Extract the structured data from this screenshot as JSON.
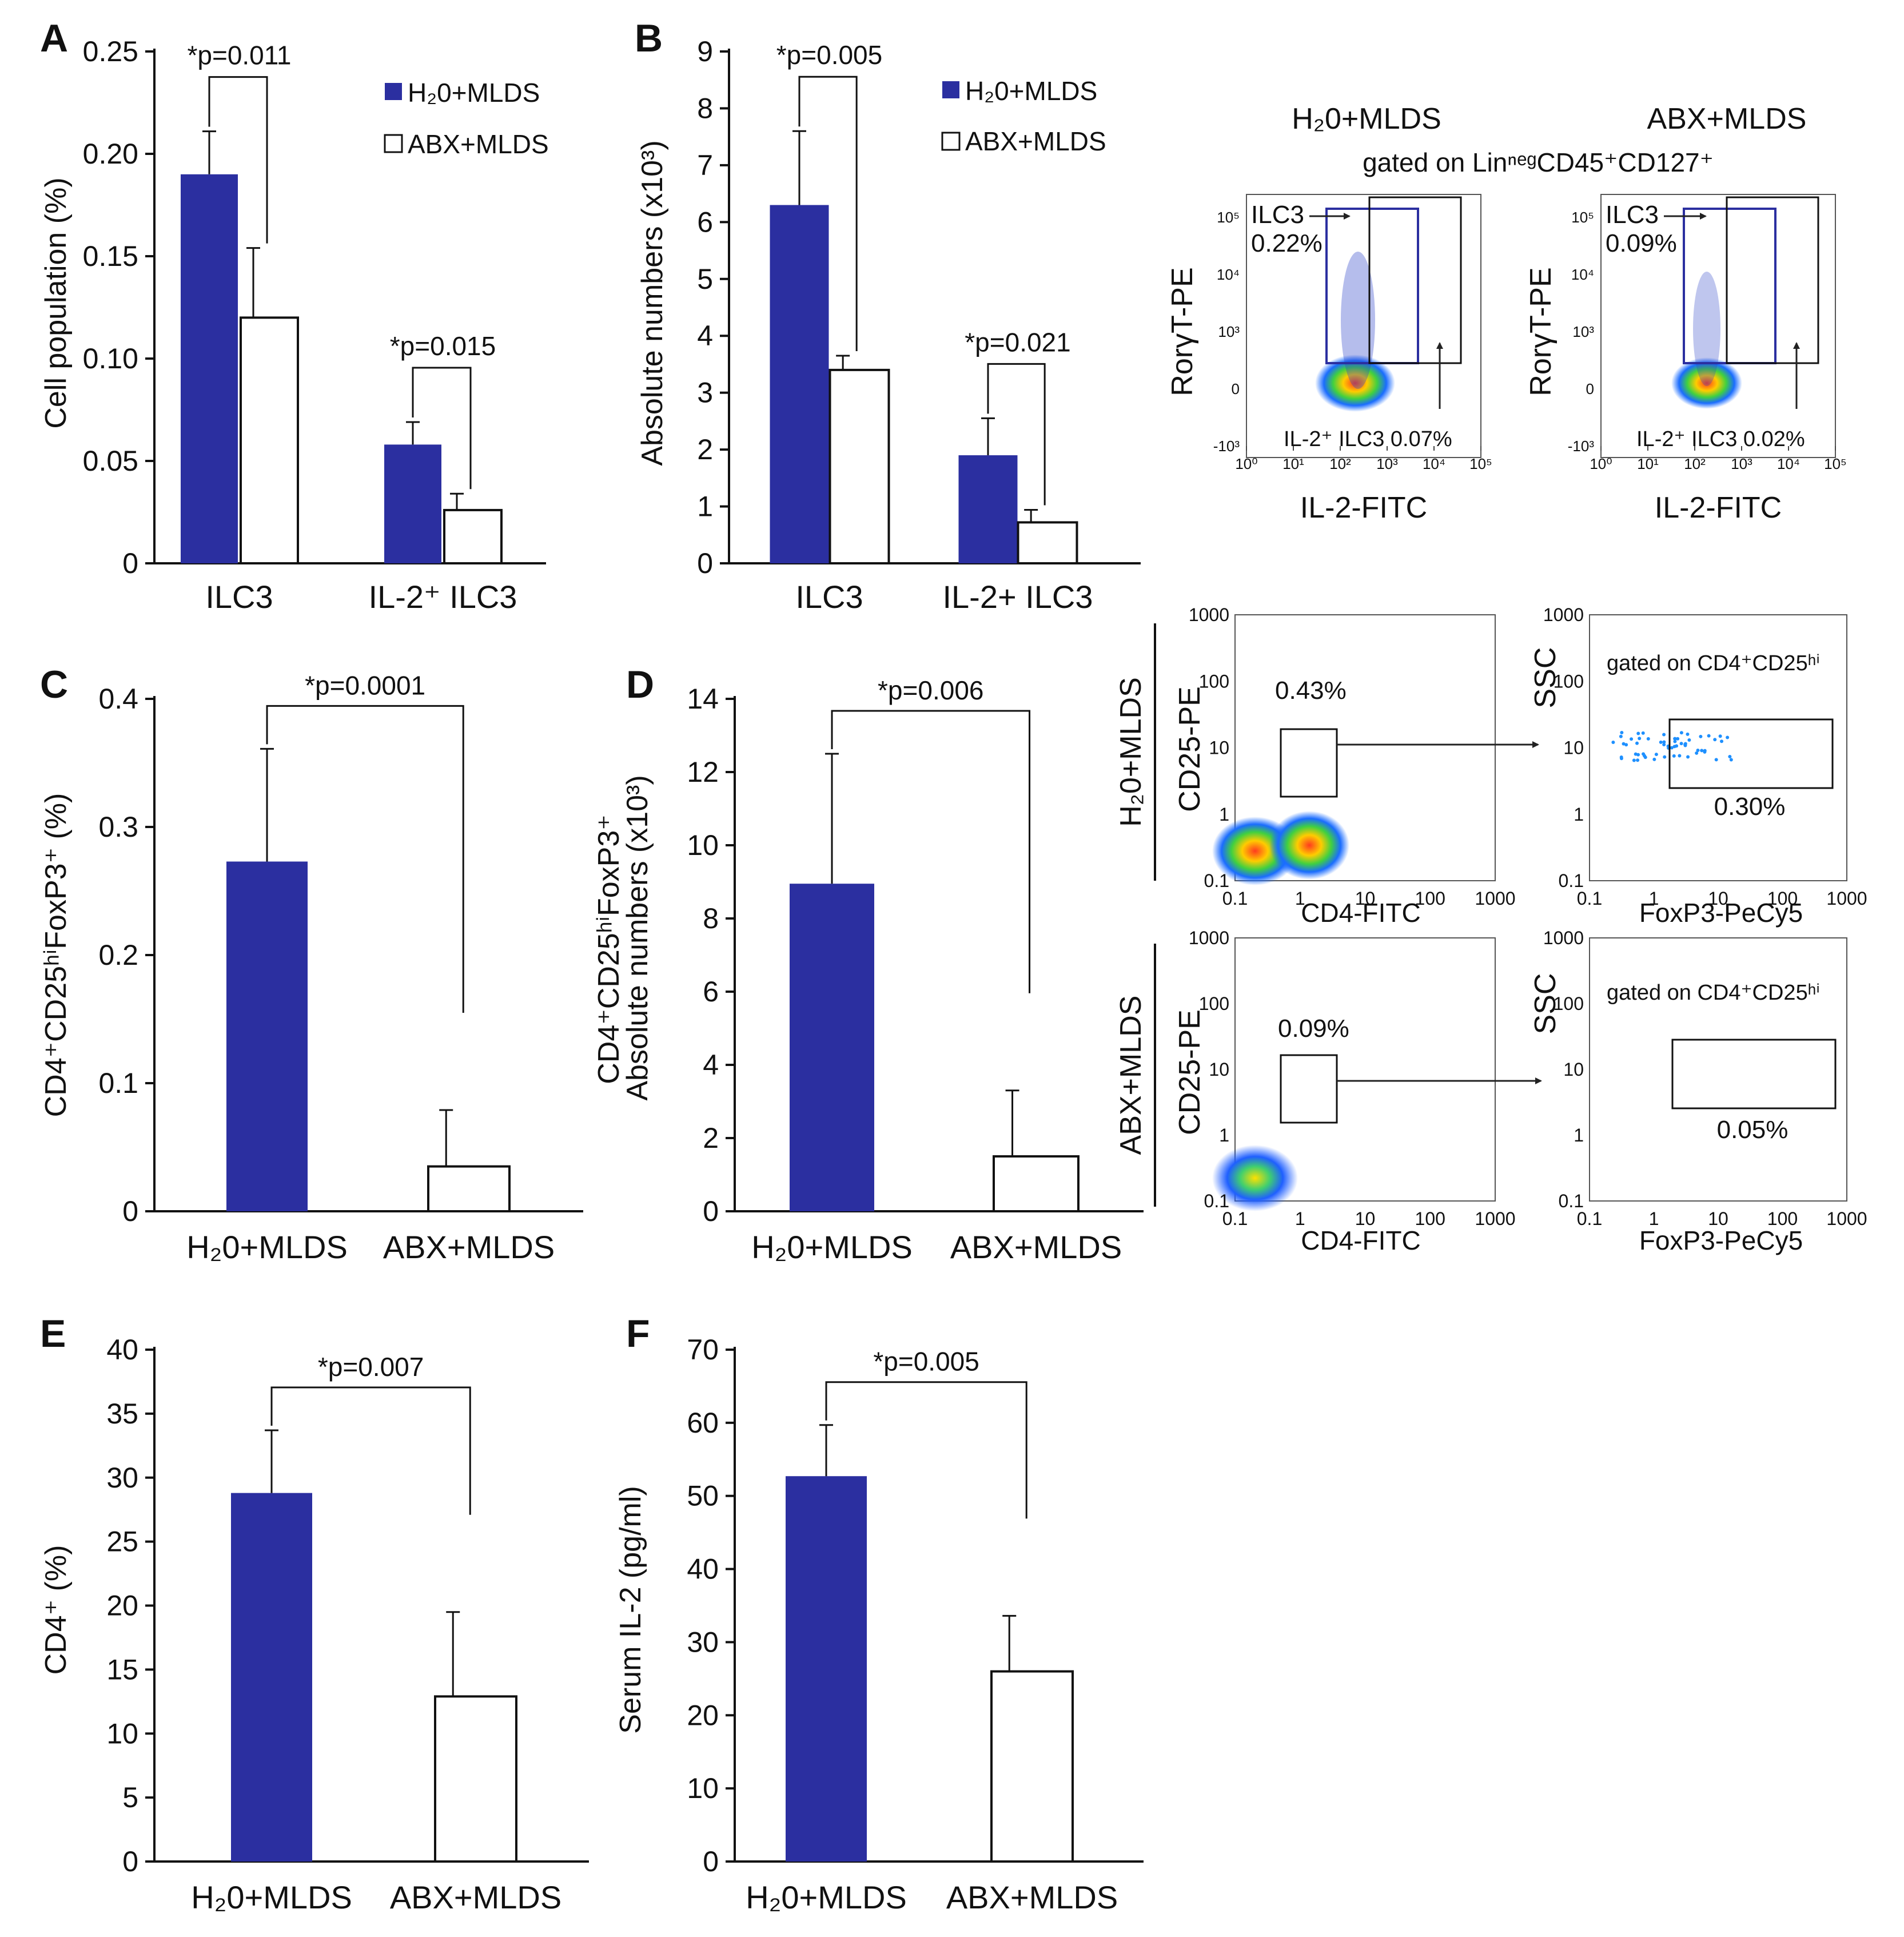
{
  "colors": {
    "filled": "#2b2fa0",
    "open": "#ffffff",
    "axis": "#111111"
  },
  "chart_data": [
    {
      "panel": "A",
      "type": "bar",
      "ylabel": "Cell population (%)",
      "ylim": [
        0,
        0.25
      ],
      "yticks": [
        "0",
        "0.05",
        "0.10",
        "0.15",
        "0.20",
        "0.25"
      ],
      "categories": [
        "ILC3",
        "IL-2⁺ ILC3"
      ],
      "series": [
        {
          "name": "H₂0+MLDS",
          "values": [
            0.19,
            0.058
          ],
          "errors": [
            0.021,
            0.011
          ]
        },
        {
          "name": "ABX+MLDS",
          "values": [
            0.12,
            0.026
          ],
          "errors": [
            0.034,
            0.008
          ]
        }
      ],
      "significance": [
        "*p=0.011",
        "*p=0.015"
      ]
    },
    {
      "panel": "B",
      "type": "bar",
      "ylabel": "Absolute numbers (x10³)",
      "ylim": [
        0,
        9
      ],
      "yticks": [
        "0",
        "1",
        "2",
        "3",
        "4",
        "5",
        "6",
        "7",
        "8",
        "9"
      ],
      "categories": [
        "ILC3",
        "IL-2+ ILC3"
      ],
      "series": [
        {
          "name": "H₂0+MLDS",
          "values": [
            6.3,
            1.9
          ],
          "errors": [
            1.3,
            0.65
          ]
        },
        {
          "name": "ABX+MLDS",
          "values": [
            3.4,
            0.72
          ],
          "errors": [
            0.25,
            0.22
          ]
        }
      ],
      "significance": [
        "*p=0.005",
        "*p=0.021"
      ]
    },
    {
      "panel": "C",
      "type": "bar",
      "ylabel": "CD4⁺CD25ʰⁱFoxP3⁺ (%)",
      "ylim": [
        0,
        0.4
      ],
      "yticks": [
        "0",
        "0.1",
        "0.2",
        "0.3",
        "0.4"
      ],
      "categories": [
        "H₂0+MLDS",
        "ABX+MLDS"
      ],
      "values": [
        0.273,
        0.035
      ],
      "errors": [
        0.088,
        0.044
      ],
      "significance": "*p=0.0001"
    },
    {
      "panel": "D",
      "type": "bar",
      "ylabel": "CD4⁺CD25ʰⁱFoxP3⁺",
      "ylabel2": "Absolute numbers (x10³)",
      "ylim": [
        0,
        14
      ],
      "yticks": [
        "0",
        "2",
        "4",
        "6",
        "8",
        "10",
        "12",
        "14"
      ],
      "categories": [
        "H₂0+MLDS",
        "ABX+MLDS"
      ],
      "values": [
        8.95,
        1.5
      ],
      "errors": [
        3.55,
        1.8
      ],
      "significance": "*p=0.006"
    },
    {
      "panel": "E",
      "type": "bar",
      "ylabel": "CD4⁺ (%)",
      "ylim": [
        0,
        40
      ],
      "yticks": [
        "0",
        "5",
        "10",
        "15",
        "20",
        "25",
        "30",
        "35",
        "40"
      ],
      "categories": [
        "H₂0+MLDS",
        "ABX+MLDS"
      ],
      "values": [
        28.8,
        12.9
      ],
      "errors": [
        4.9,
        6.6
      ],
      "significance": "*p=0.007"
    },
    {
      "panel": "F",
      "type": "bar",
      "ylabel": "Serum IL-2 (pg/ml)",
      "ylim": [
        0,
        70
      ],
      "yticks": [
        "0",
        "10",
        "20",
        "30",
        "40",
        "50",
        "60",
        "70"
      ],
      "categories": [
        "H₂0+MLDS",
        "ABX+MLDS"
      ],
      "values": [
        52.7,
        26.0
      ],
      "errors": [
        7.0,
        7.6
      ],
      "significance": "*p=0.005"
    }
  ],
  "flow_top": {
    "groups": [
      "H₂0+MLDS",
      "ABX+MLDS"
    ],
    "gated": "gated on LinⁿᵉᵍCD45⁺CD127⁺",
    "ylabel": "RorγT-PE",
    "xlabel": "IL-2-FITC",
    "ilc3_label": "ILC3",
    "ilc3_pct": [
      "0.22%",
      "0.09%"
    ],
    "il2_label": [
      "IL-2⁺ ILC3 0.07%",
      "IL-2⁺ ILC3 0.02%"
    ],
    "xticks": [
      "10⁰",
      "10¹",
      "10²",
      "10³",
      "10⁴",
      "10⁵"
    ],
    "yticks": [
      "10⁵",
      "10⁴",
      "10³",
      "0",
      "-10³"
    ]
  },
  "flow_bottom": {
    "rows": [
      "H₂0+MLDS",
      "ABX+MLDS"
    ],
    "left_ylabel": "CD25-PE",
    "left_xlabel": "CD4-FITC",
    "right_ylabel": "SSC",
    "right_xlabel": "FoxP3-PeCy5",
    "gated": "gated on CD4⁺CD25ʰⁱ",
    "cd25_pct": [
      "0.43%",
      "0.09%"
    ],
    "foxp3_pct": [
      "0.30%",
      "0.05%"
    ],
    "ticks": [
      "0.1",
      "1",
      "10",
      "100",
      "1000"
    ]
  }
}
